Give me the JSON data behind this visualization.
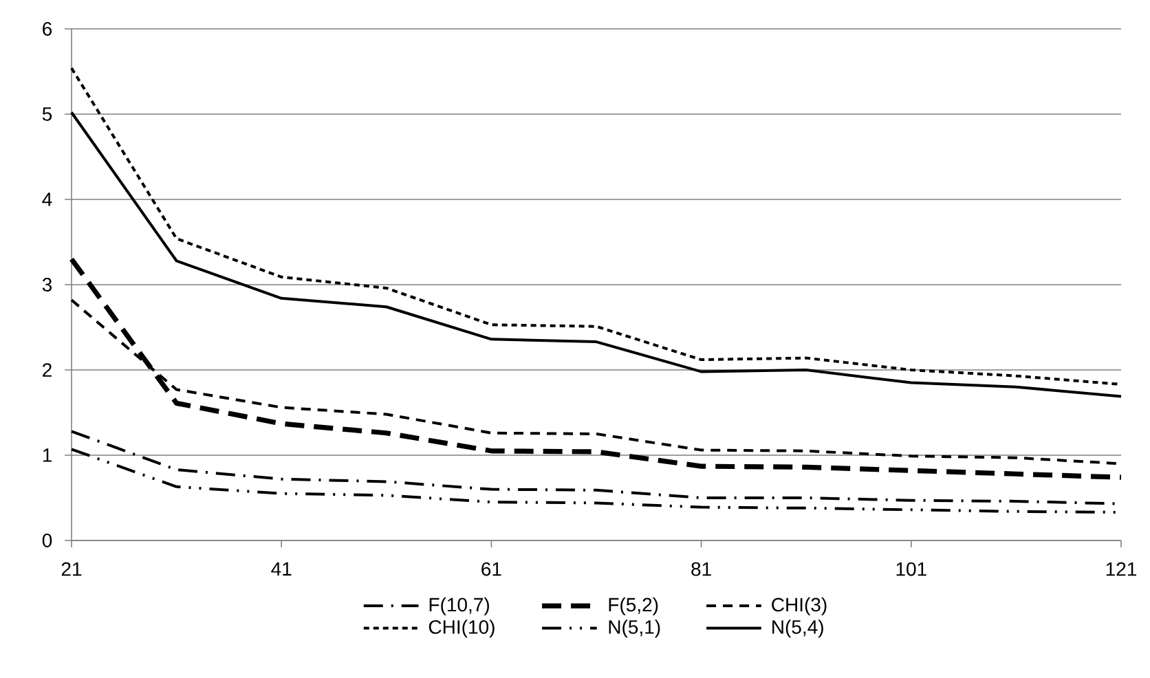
{
  "chart_data": {
    "type": "line",
    "x": [
      21,
      31,
      41,
      51,
      61,
      71,
      81,
      91,
      101,
      111,
      121
    ],
    "xlim": [
      21,
      121
    ],
    "xticks": [
      21,
      41,
      61,
      81,
      101,
      121
    ],
    "ylim": [
      0,
      6
    ],
    "yticks": [
      0,
      1,
      2,
      3,
      4,
      5,
      6
    ],
    "grid": "y",
    "legend": "bottom",
    "series": [
      {
        "name": "F(10,7)",
        "color": "#000000",
        "line_style": "dashdot",
        "values": [
          1.28,
          0.83,
          0.72,
          0.69,
          0.6,
          0.59,
          0.5,
          0.5,
          0.47,
          0.46,
          0.43
        ]
      },
      {
        "name": "F(5,2)",
        "color": "#000000",
        "line_style": "long dashed",
        "values": [
          3.3,
          1.61,
          1.37,
          1.26,
          1.05,
          1.04,
          0.87,
          0.86,
          0.82,
          0.78,
          0.74
        ]
      },
      {
        "name": "CHI(3)",
        "color": "#000000",
        "line_style": "dashed",
        "values": [
          2.82,
          1.77,
          1.56,
          1.48,
          1.26,
          1.25,
          1.06,
          1.05,
          0.99,
          0.97,
          0.9
        ]
      },
      {
        "name": "CHI(10)",
        "color": "#000000",
        "line_style": "short dashed",
        "values": [
          5.54,
          3.54,
          3.09,
          2.96,
          2.53,
          2.51,
          2.12,
          2.14,
          2.0,
          1.93,
          1.83
        ]
      },
      {
        "name": "N(5,1)",
        "color": "#000000",
        "line_style": "dashdotdot",
        "values": [
          1.07,
          0.63,
          0.55,
          0.53,
          0.45,
          0.44,
          0.39,
          0.38,
          0.36,
          0.34,
          0.33
        ]
      },
      {
        "name": "N(5,4)",
        "color": "#000000",
        "line_style": "solid",
        "values": [
          5.02,
          3.28,
          2.84,
          2.74,
          2.36,
          2.33,
          1.98,
          2.0,
          1.85,
          1.8,
          1.69
        ]
      }
    ]
  }
}
